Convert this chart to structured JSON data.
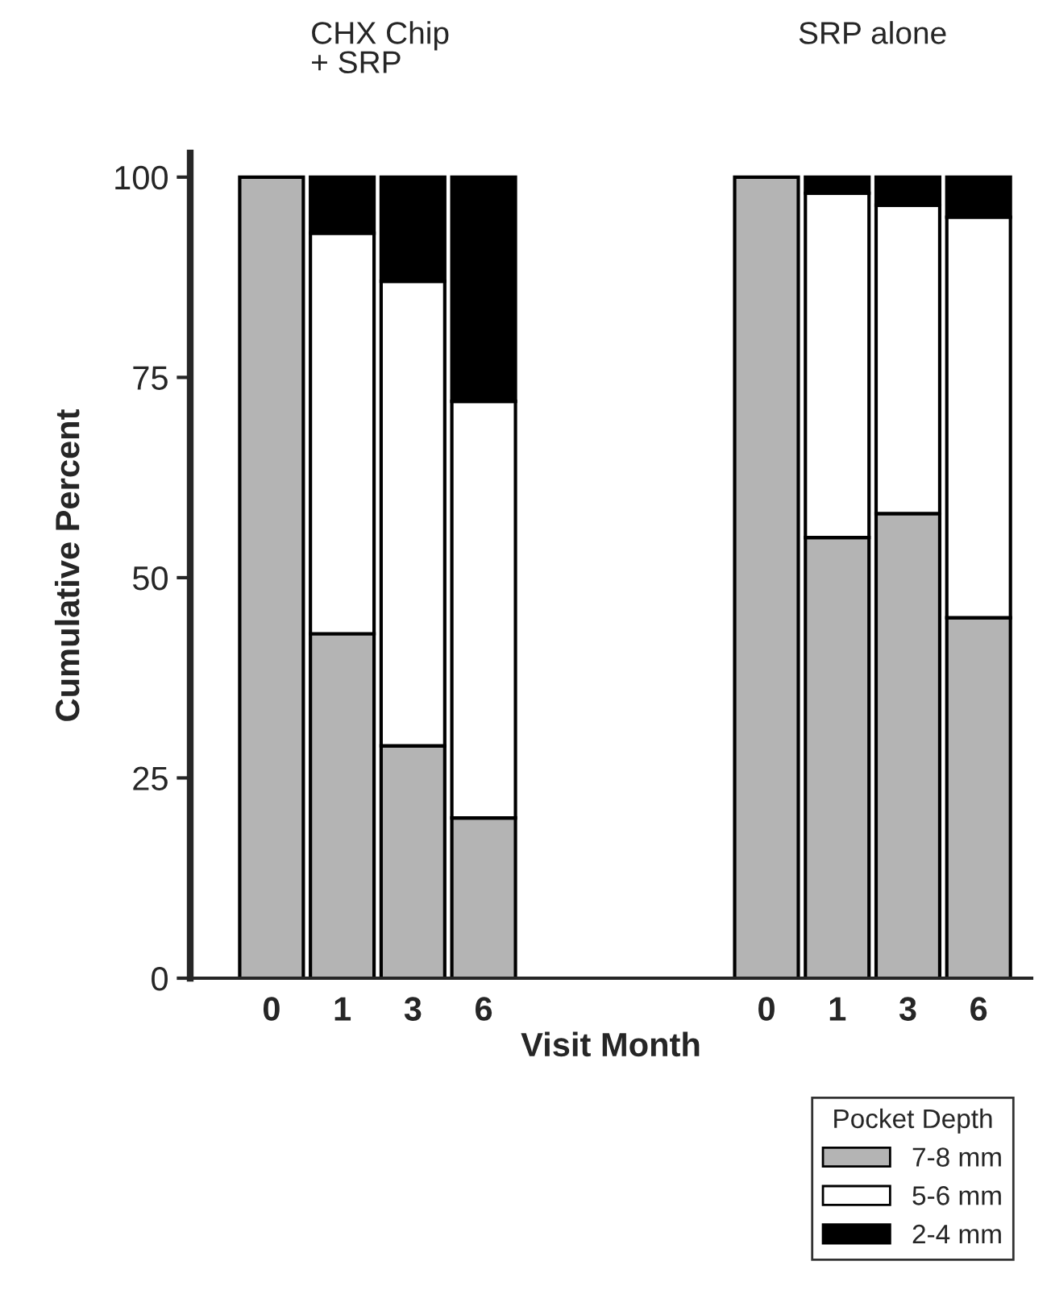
{
  "chart_data": {
    "type": "bar",
    "stacked": true,
    "xlabel": "Visit Month",
    "ylabel": "Cumulative Percent",
    "legend_title": "Pocket Depth",
    "legend": "bottom right",
    "categories": [
      "0",
      "1",
      "3",
      "6",
      null,
      null,
      null,
      "0",
      "1",
      "3",
      "6"
    ],
    "series": [
      {
        "name": "7-8 mm",
        "color": "#b4b4b4",
        "values": [
          100,
          43,
          29,
          20,
          null,
          null,
          null,
          100,
          55,
          58,
          45
        ]
      },
      {
        "name": "5-6 mm",
        "color": "#ffffff",
        "values": [
          null,
          50,
          58,
          52,
          null,
          null,
          null,
          null,
          43,
          38.5,
          50
        ]
      },
      {
        "name": "2-4 mm",
        "color": "#000000",
        "values": [
          null,
          7,
          13,
          28,
          null,
          null,
          null,
          null,
          2,
          3.5,
          5
        ]
      }
    ],
    "ylim": [
      0,
      103
    ],
    "yticks": [
      0,
      25,
      50,
      75,
      100
    ],
    "grid": false,
    "annotations": [
      "CHX Chip\n+ SRP",
      "SRP alone"
    ]
  }
}
